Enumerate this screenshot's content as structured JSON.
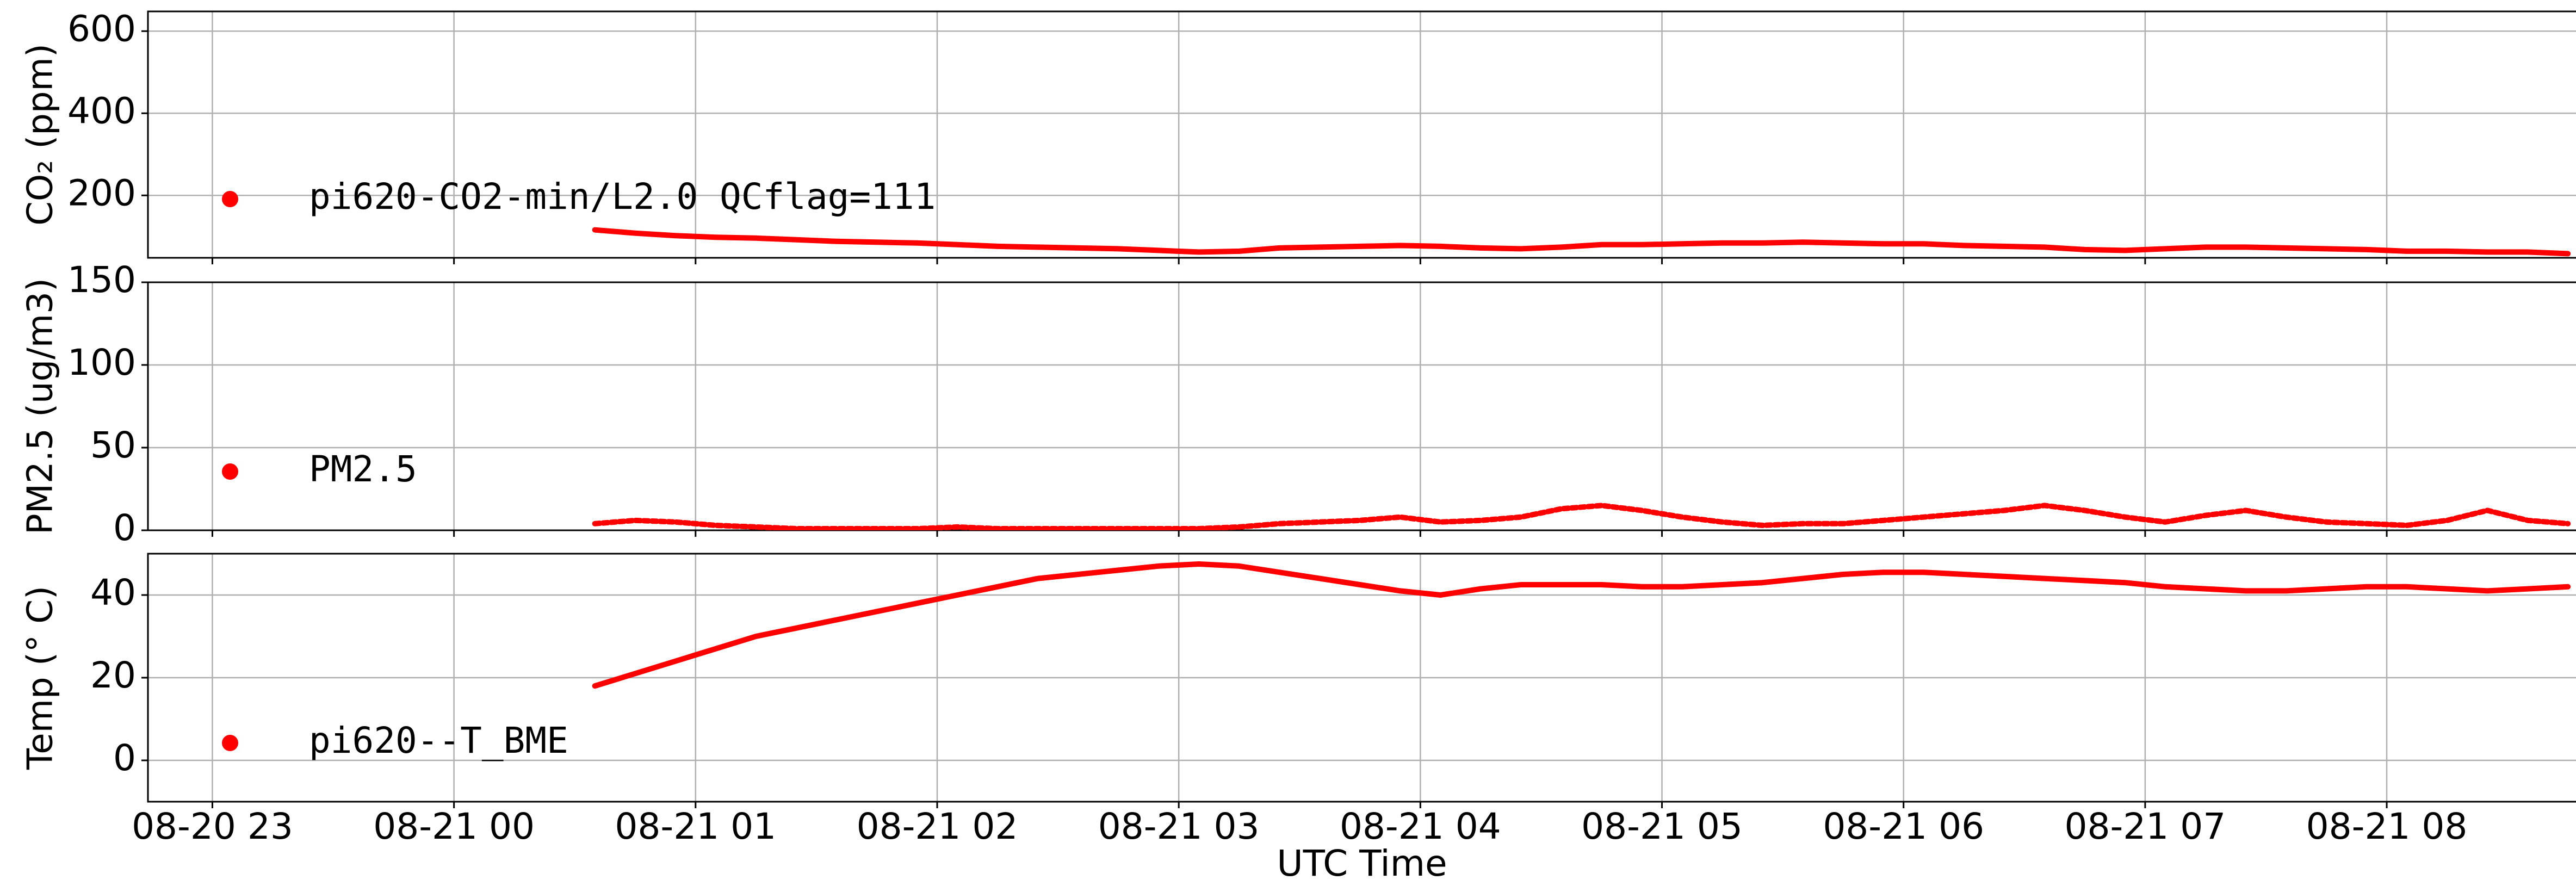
{
  "chart_data": {
    "type": "line",
    "xlabel": "UTC Time",
    "xlim": [
      "08-20 22:44",
      "08-21 08:47"
    ],
    "xticks": [
      {
        "value": "08-20 23:00",
        "label": "08-20 23"
      },
      {
        "value": "08-21 00:00",
        "label": "08-21 00"
      },
      {
        "value": "08-21 01:00",
        "label": "08-21 01"
      },
      {
        "value": "08-21 02:00",
        "label": "08-21 02"
      },
      {
        "value": "08-21 03:00",
        "label": "08-21 03"
      },
      {
        "value": "08-21 04:00",
        "label": "08-21 04"
      },
      {
        "value": "08-21 05:00",
        "label": "08-21 05"
      },
      {
        "value": "08-21 06:00",
        "label": "08-21 06"
      },
      {
        "value": "08-21 07:00",
        "label": "08-21 07"
      },
      {
        "value": "08-21 08:00",
        "label": "08-21 08"
      }
    ],
    "grid": true,
    "legend": "lower left",
    "x": [
      "08-21 00:35",
      "08-21 00:45",
      "08-21 00:55",
      "08-21 01:05",
      "08-21 01:15",
      "08-21 01:25",
      "08-21 01:35",
      "08-21 01:45",
      "08-21 01:55",
      "08-21 02:05",
      "08-21 02:15",
      "08-21 02:25",
      "08-21 02:35",
      "08-21 02:45",
      "08-21 02:55",
      "08-21 03:05",
      "08-21 03:15",
      "08-21 03:25",
      "08-21 03:35",
      "08-21 03:45",
      "08-21 03:55",
      "08-21 04:05",
      "08-21 04:15",
      "08-21 04:25",
      "08-21 04:35",
      "08-21 04:45",
      "08-21 04:55",
      "08-21 05:05",
      "08-21 05:15",
      "08-21 05:25",
      "08-21 05:35",
      "08-21 05:45",
      "08-21 05:55",
      "08-21 06:05",
      "08-21 06:15",
      "08-21 06:25",
      "08-21 06:35",
      "08-21 06:45",
      "08-21 06:55",
      "08-21 07:05",
      "08-21 07:15",
      "08-21 07:25",
      "08-21 07:35",
      "08-21 07:45",
      "08-21 07:55",
      "08-21 08:05",
      "08-21 08:15",
      "08-21 08:25",
      "08-21 08:35",
      "08-21 08:45"
    ],
    "panels": [
      {
        "ylabel": "CO₂ (ppm)",
        "ylim": [
          48,
          648
        ],
        "yticks": [
          200,
          400,
          600
        ],
        "series": [
          {
            "name": "pi620-CO2-min/L2.0 QCflag=111",
            "color": "#ff0000",
            "values": [
              116,
              108,
              102,
              98,
              96,
              92,
              88,
              86,
              84,
              80,
              76,
              74,
              72,
              70,
              66,
              62,
              64,
              72,
              74,
              76,
              78,
              76,
              72,
              70,
              74,
              80,
              80,
              82,
              84,
              84,
              86,
              84,
              82,
              82,
              78,
              76,
              74,
              68,
              66,
              70,
              74,
              74,
              72,
              70,
              68,
              64,
              64,
              62,
              62,
              58
            ]
          }
        ]
      },
      {
        "ylabel": "PM2.5 (ug/m3)",
        "ylim": [
          0,
          150
        ],
        "yticks": [
          0,
          50,
          100,
          150
        ],
        "series": [
          {
            "name": "PM2.5",
            "color": "#ff0000",
            "values": [
              4,
              6,
              5,
              3,
              2,
              1,
              1,
              1,
              1,
              2,
              1,
              1,
              1,
              1,
              1,
              1,
              2,
              4,
              5,
              6,
              8,
              5,
              6,
              8,
              13,
              15,
              12,
              8,
              5,
              3,
              4,
              4,
              6,
              8,
              10,
              12,
              15,
              12,
              8,
              5,
              9,
              12,
              8,
              5,
              4,
              3,
              6,
              12,
              6,
              4
            ]
          }
        ]
      },
      {
        "ylabel": "Temp (° C)",
        "ylim": [
          -10,
          50
        ],
        "yticks": [
          0,
          20,
          40
        ],
        "series": [
          {
            "name": "pi620--T_BME",
            "color": "#ff0000",
            "values": [
              18,
              21,
              24,
              27,
              30,
              32,
              34,
              36,
              38,
              40,
              42,
              44,
              45,
              46,
              47,
              47.5,
              47,
              45.5,
              44,
              42.5,
              41,
              40,
              41.5,
              42.5,
              42.5,
              42.5,
              42,
              42,
              42.5,
              43,
              44,
              45,
              45.5,
              45.5,
              45,
              44.5,
              44,
              43.5,
              43,
              42,
              41.5,
              41,
              41,
              41.5,
              42,
              42,
              41.5,
              41,
              41.5,
              42
            ]
          }
        ]
      }
    ]
  }
}
